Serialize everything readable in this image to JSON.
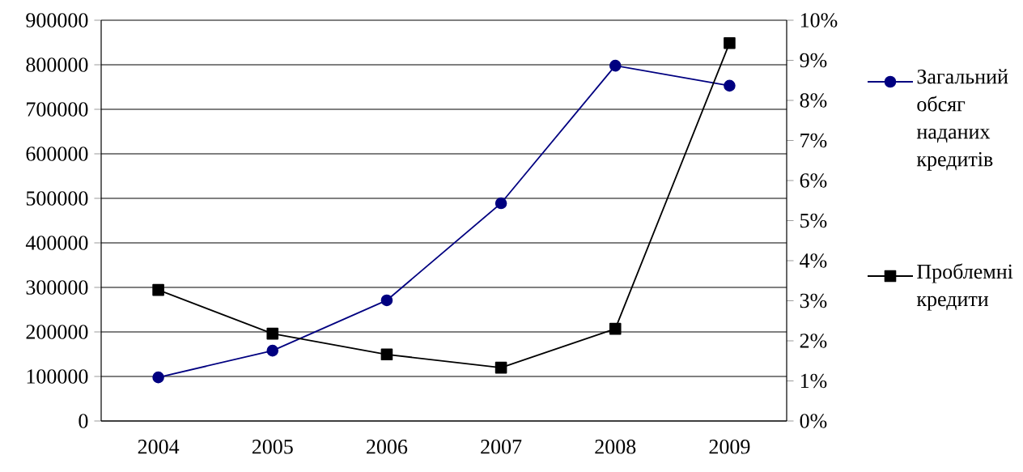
{
  "chart_data": {
    "type": "line",
    "categories": [
      "2004",
      "2005",
      "2006",
      "2007",
      "2008",
      "2009"
    ],
    "series": [
      {
        "name": "Загальний обсяг наданих кредитів",
        "color": "#000080",
        "marker": "circle",
        "values": [
          98000,
          158000,
          271000,
          489000,
          798000,
          753000
        ]
      },
      {
        "name": "Проблемні кредити",
        "color": "#000000",
        "marker": "square",
        "axis": "y2",
        "values": [
          3.27,
          2.18,
          1.66,
          1.33,
          2.3,
          9.43
        ]
      }
    ],
    "ylim": [
      0,
      900000
    ],
    "yticks": [
      0,
      100000,
      200000,
      300000,
      400000,
      500000,
      600000,
      700000,
      800000,
      900000
    ],
    "y2lim": [
      0,
      10
    ],
    "y2ticks": [
      {
        "value": 0,
        "label": "0%"
      },
      {
        "value": 1,
        "label": "1%"
      },
      {
        "value": 2,
        "label": "2%"
      },
      {
        "value": 3,
        "label": "3%"
      },
      {
        "value": 4,
        "label": "4%"
      },
      {
        "value": 5,
        "label": "5%"
      },
      {
        "value": 6,
        "label": "6%"
      },
      {
        "value": 7,
        "label": "7%"
      },
      {
        "value": 8,
        "label": "8%"
      },
      {
        "value": 9,
        "label": "9%"
      },
      {
        "value": 10,
        "label": "10%"
      }
    ],
    "grid": "y",
    "legend": "right",
    "line_style": "solid"
  }
}
